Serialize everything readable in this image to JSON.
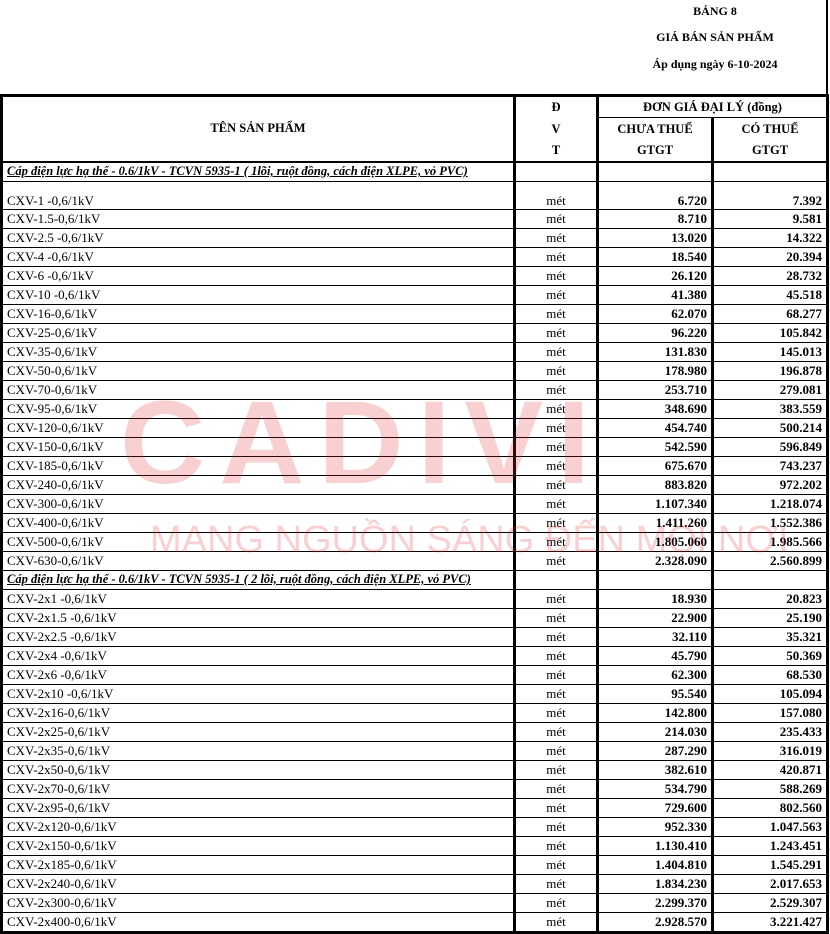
{
  "header": {
    "table_no": "BẢNG 8",
    "title": "GIÁ BÁN SẢN PHẨM",
    "effective": "Áp dụng ngày 6-10-2024"
  },
  "columns": {
    "name": "TÊN SẢN PHẨM",
    "dvt": [
      "Đ",
      "V",
      "T"
    ],
    "price_group": "ĐƠN GIÁ ĐẠI LÝ (đồng)",
    "pre_tax": [
      "CHƯA THUẾ",
      "GTGT"
    ],
    "with_tax": [
      "CÓ THUẾ",
      "GTGT"
    ]
  },
  "watermark": {
    "logo": "CADIVI",
    "slogan": "MANG NGUỒN SÁNG ĐẾN MỌI NƠI"
  },
  "sections": [
    {
      "title": "Cáp điện lực hạ thế - 0.6/1kV - TCVN 5935-1 ( 1lõi, ruột đồng, cách điện XLPE, vỏ PVC)",
      "rows": [
        [
          "CXV-1 -0,6/1kV",
          "mét",
          "6.720",
          "7.392"
        ],
        [
          "CXV-1.5-0,6/1kV",
          "mét",
          "8.710",
          "9.581"
        ],
        [
          "CXV-2.5  -0,6/1kV",
          "mét",
          "13.020",
          "14.322"
        ],
        [
          "CXV-4  -0,6/1kV",
          "mét",
          "18.540",
          "20.394"
        ],
        [
          "CXV-6 -0,6/1kV",
          "mét",
          "26.120",
          "28.732"
        ],
        [
          "CXV-10 -0,6/1kV",
          "mét",
          "41.380",
          "45.518"
        ],
        [
          "CXV-16-0,6/1kV",
          "mét",
          "62.070",
          "68.277"
        ],
        [
          "CXV-25-0,6/1kV",
          "mét",
          "96.220",
          "105.842"
        ],
        [
          "CXV-35-0,6/1kV",
          "mét",
          "131.830",
          "145.013"
        ],
        [
          "CXV-50-0,6/1kV",
          "mét",
          "178.980",
          "196.878"
        ],
        [
          "CXV-70-0,6/1kV",
          "mét",
          "253.710",
          "279.081"
        ],
        [
          "CXV-95-0,6/1kV",
          "mét",
          "348.690",
          "383.559"
        ],
        [
          "CXV-120-0,6/1kV",
          "mét",
          "454.740",
          "500.214"
        ],
        [
          "CXV-150-0,6/1kV",
          "mét",
          "542.590",
          "596.849"
        ],
        [
          "CXV-185-0,6/1kV",
          "mét",
          "675.670",
          "743.237"
        ],
        [
          "CXV-240-0,6/1kV",
          "mét",
          "883.820",
          "972.202"
        ],
        [
          "CXV-300-0,6/1kV",
          "mét",
          "1.107.340",
          "1.218.074"
        ],
        [
          "CXV-400-0,6/1kV",
          "mét",
          "1.411.260",
          "1.552.386"
        ],
        [
          "CXV-500-0,6/1kV",
          "mét",
          "1.805.060",
          "1.985.566"
        ],
        [
          "CXV-630-0,6/1kV",
          "mét",
          "2.328.090",
          "2.560.899"
        ]
      ]
    },
    {
      "title": "Cáp điện lực hạ thế - 0.6/1kV - TCVN 5935-1 ( 2 lõi, ruột đồng, cách điện XLPE, vỏ PVC)",
      "rows": [
        [
          "CXV-2x1 -0,6/1kV",
          "mét",
          "18.930",
          "20.823"
        ],
        [
          "CXV-2x1.5 -0,6/1kV",
          "mét",
          "22.900",
          "25.190"
        ],
        [
          "CXV-2x2.5 -0,6/1kV",
          "mét",
          "32.110",
          "35.321"
        ],
        [
          "CXV-2x4 -0,6/1kV",
          "mét",
          "45.790",
          "50.369"
        ],
        [
          "CXV-2x6 -0,6/1kV",
          "mét",
          "62.300",
          "68.530"
        ],
        [
          "CXV-2x10 -0,6/1kV",
          "mét",
          "95.540",
          "105.094"
        ],
        [
          "CXV-2x16-0,6/1kV",
          "mét",
          "142.800",
          "157.080"
        ],
        [
          "CXV-2x25-0,6/1kV",
          "mét",
          "214.030",
          "235.433"
        ],
        [
          "CXV-2x35-0,6/1kV",
          "mét",
          "287.290",
          "316.019"
        ],
        [
          "CXV-2x50-0,6/1kV",
          "mét",
          "382.610",
          "420.871"
        ],
        [
          "CXV-2x70-0,6/1kV",
          "mét",
          "534.790",
          "588.269"
        ],
        [
          "CXV-2x95-0,6/1kV",
          "mét",
          "729.600",
          "802.560"
        ],
        [
          "CXV-2x120-0,6/1kV",
          "mét",
          "952.330",
          "1.047.563"
        ],
        [
          "CXV-2x150-0,6/1kV",
          "mét",
          "1.130.410",
          "1.243.451"
        ],
        [
          "CXV-2x185-0,6/1kV",
          "mét",
          "1.404.810",
          "1.545.291"
        ],
        [
          "CXV-2x240-0,6/1kV",
          "mét",
          "1.834.230",
          "2.017.653"
        ],
        [
          "CXV-2x300-0,6/1kV",
          "mét",
          "2.299.370",
          "2.529.307"
        ],
        [
          "CXV-2x400-0,6/1kV",
          "mét",
          "2.928.570",
          "3.221.427"
        ]
      ]
    }
  ]
}
